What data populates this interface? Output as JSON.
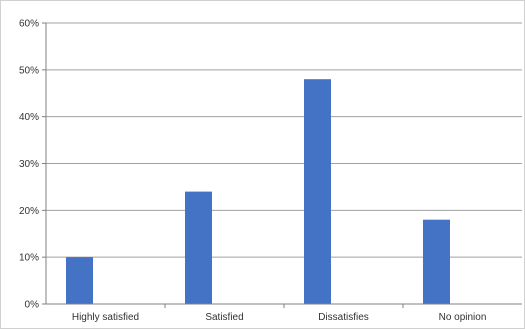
{
  "chart_data": {
    "type": "bar",
    "categories": [
      "Highly satisfied",
      "Satisfied",
      "Dissatisfies",
      "No opinion"
    ],
    "values": [
      0.1,
      0.24,
      0.48,
      0.18
    ],
    "y_tick_labels": [
      "0%",
      "10%",
      "20%",
      "30%",
      "40%",
      "50%",
      "60%"
    ],
    "ylim": [
      0,
      0.6
    ],
    "grid": true,
    "legend": "none",
    "colors": {
      "bar": "#4472c4",
      "grid": "#a0a0a0",
      "axis": "#808080"
    }
  }
}
